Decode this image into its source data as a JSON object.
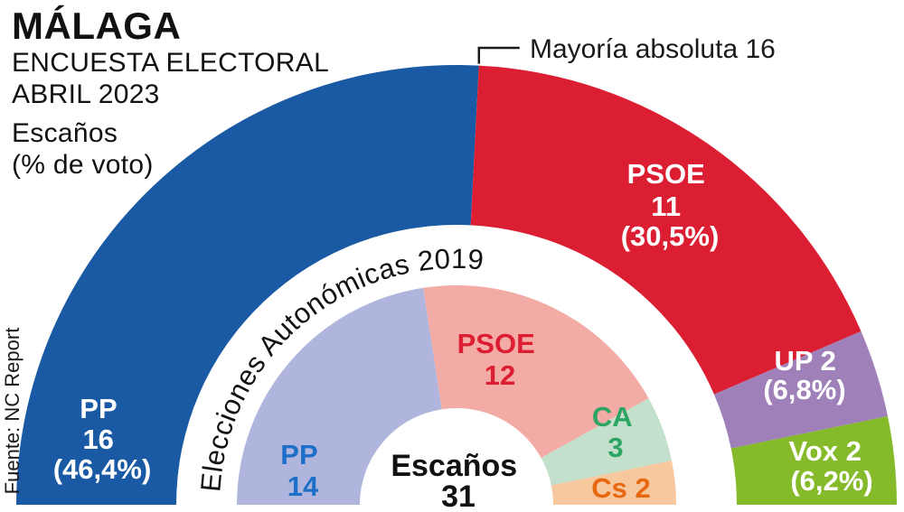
{
  "header": {
    "title": "MÁLAGA",
    "line1": "ENCUESTA ELECTORAL",
    "line2": "ABRIL 2023",
    "line3": "Escaños",
    "line4": "(% de voto)"
  },
  "source": "Fuente: NC Report",
  "annotation": "Mayoría absoluta 16",
  "chart_data": {
    "type": "pie",
    "variant": "hemicycle-double-ring",
    "title": "MÁLAGA — ENCUESTA ELECTORAL ABRIL 2023",
    "units": "Escaños (% de voto)",
    "total_seats": 31,
    "majority_seats": 16,
    "center_label": {
      "line1": "Escaños",
      "line2": "31"
    },
    "outer_ring": {
      "name": "Encuesta electoral abril 2023",
      "parties": [
        {
          "name": "PP",
          "seats": 16,
          "vote_pct": 46.4,
          "color": "#1a59a4",
          "text_color": "#ffffff",
          "label_lines": [
            "PP",
            "16",
            "(46,4%)"
          ]
        },
        {
          "name": "PSOE",
          "seats": 11,
          "vote_pct": 30.5,
          "color": "#dc1e33",
          "text_color": "#ffffff",
          "label_lines": [
            "PSOE",
            "11",
            "(30,5%)"
          ]
        },
        {
          "name": "UP",
          "seats": 2,
          "vote_pct": 6.8,
          "color": "#9f80b8",
          "text_color": "#ffffff",
          "label_lines": [
            "UP 2",
            "(6,8%)"
          ]
        },
        {
          "name": "Vox",
          "seats": 2,
          "vote_pct": 6.2,
          "color": "#85bb2a",
          "text_color": "#ffffff",
          "label_lines": [
            "Vox 2",
            "(6,2%)"
          ]
        }
      ]
    },
    "inner_ring": {
      "name": "Elecciones Autonómicas 2019",
      "parties": [
        {
          "name": "PP",
          "seats": 14,
          "color": "#afb5dc",
          "text_color": "#1d6fc8",
          "label_lines": [
            "PP",
            "14"
          ]
        },
        {
          "name": "PSOE",
          "seats": 12,
          "color": "#f3aca5",
          "text_color": "#dc1e33",
          "label_lines": [
            "PSOE",
            "12"
          ]
        },
        {
          "name": "CA",
          "seats": 3,
          "color": "#c2e0cb",
          "text_color": "#2ea563",
          "label_lines": [
            "CA",
            "3"
          ]
        },
        {
          "name": "Cs",
          "seats": 2,
          "color": "#f7c79e",
          "text_color": "#e8680f",
          "label_lines": [
            "Cs 2"
          ]
        }
      ]
    }
  }
}
